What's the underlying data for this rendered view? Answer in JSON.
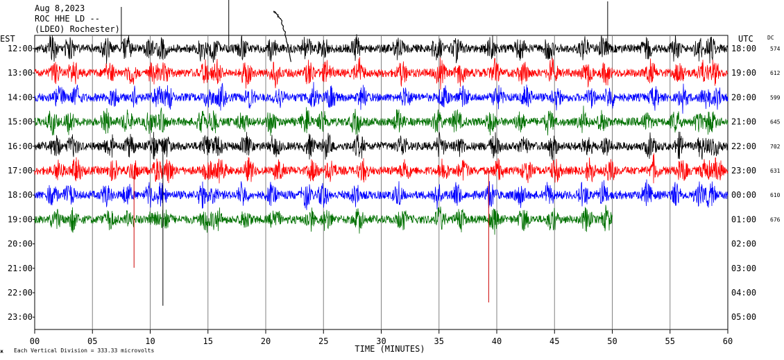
{
  "header": {
    "date": "Aug 8,2023",
    "station": "ROC HHE LD --",
    "network": "(LDEO) Rochester)"
  },
  "axes": {
    "left_tz": "EST",
    "right_tz": "UTC",
    "dc_label": "DC",
    "xlabel": "TIME (MINUTES)",
    "footer_note": "Each Vertical Division =  333.33 microvolts"
  },
  "chart_data": {
    "type": "line",
    "title": "",
    "xlabel": "TIME (MINUTES)",
    "x_ticks": [
      "00",
      "05",
      "10",
      "15",
      "20",
      "25",
      "30",
      "35",
      "40",
      "45",
      "50",
      "55",
      "60"
    ],
    "xlim": [
      0,
      60
    ],
    "grid": true,
    "rows": [
      {
        "local": "12:00",
        "utc": "18:00",
        "dc": "574",
        "color": "#000000",
        "end_min": 60
      },
      {
        "local": "13:00",
        "utc": "19:00",
        "dc": "612",
        "color": "#ff0000",
        "end_min": 60
      },
      {
        "local": "14:00",
        "utc": "20:00",
        "dc": "599",
        "color": "#0000ff",
        "end_min": 60
      },
      {
        "local": "15:00",
        "utc": "21:00",
        "dc": "645",
        "color": "#007000",
        "end_min": 60
      },
      {
        "local": "16:00",
        "utc": "22:00",
        "dc": "702",
        "color": "#000000",
        "end_min": 60
      },
      {
        "local": "17:00",
        "utc": "23:00",
        "dc": "631",
        "color": "#ff0000",
        "end_min": 60
      },
      {
        "local": "18:00",
        "utc": "00:00",
        "dc": "610",
        "color": "#0000ff",
        "end_min": 60
      },
      {
        "local": "19:00",
        "utc": "01:00",
        "dc": "676",
        "color": "#007000",
        "end_min": 50
      },
      {
        "local": "20:00",
        "utc": "02:00",
        "dc": "",
        "color": "#000000",
        "end_min": 0
      },
      {
        "local": "21:00",
        "utc": "03:00",
        "dc": "",
        "color": "#ff0000",
        "end_min": 0
      },
      {
        "local": "22:00",
        "utc": "04:00",
        "dc": "",
        "color": "#0000ff",
        "end_min": 0
      },
      {
        "local": "23:00",
        "utc": "05:00",
        "dc": "",
        "color": "#007000",
        "end_min": 0
      }
    ]
  }
}
